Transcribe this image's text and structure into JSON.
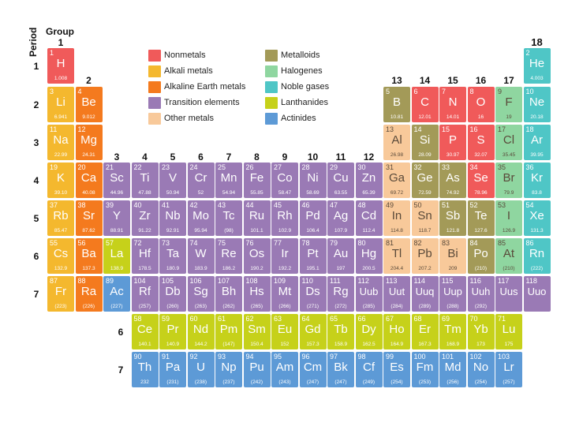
{
  "labels": {
    "period": "Period",
    "group": "Group"
  },
  "colors": {
    "nonmetal": "#f05a5a",
    "alkali": "#f4b82e",
    "alkaline": "#f47a1e",
    "transition": "#9a7ab5",
    "other": "#f8c99a",
    "metalloid": "#a39a58",
    "halogen": "#8fd6a0",
    "noble": "#4fc6c6",
    "lanthanide": "#c6d11a",
    "actinide": "#5d9ad6"
  },
  "legend": [
    {
      "label": "Nonmetals",
      "cat": "nonmetal"
    },
    {
      "label": "Alkali metals",
      "cat": "alkali"
    },
    {
      "label": "Alkaline Earth metals",
      "cat": "alkaline"
    },
    {
      "label": "Transition elements",
      "cat": "transition"
    },
    {
      "label": "Other metals",
      "cat": "other"
    },
    {
      "label": "Metalloids",
      "cat": "metalloid"
    },
    {
      "label": "Halogenes",
      "cat": "halogen"
    },
    {
      "label": "Noble gases",
      "cat": "noble"
    },
    {
      "label": "Lanthanides",
      "cat": "lanthanide"
    },
    {
      "label": "Actinides",
      "cat": "actinide"
    }
  ],
  "group_labels": [
    "1",
    "2",
    "3",
    "4",
    "5",
    "6",
    "7",
    "8",
    "9",
    "10",
    "11",
    "12",
    "13",
    "14",
    "15",
    "16",
    "17",
    "18"
  ],
  "period_labels": [
    "1",
    "2",
    "3",
    "4",
    "5",
    "6",
    "7"
  ],
  "series_labels": [
    "6",
    "7"
  ],
  "elements": [
    {
      "n": "1",
      "s": "H",
      "m": "1.008",
      "p": 1,
      "g": 1,
      "c": "nonmetal"
    },
    {
      "n": "2",
      "s": "He",
      "m": "4.003",
      "p": 1,
      "g": 18,
      "c": "noble"
    },
    {
      "n": "3",
      "s": "Li",
      "m": "6.941",
      "p": 2,
      "g": 1,
      "c": "alkali"
    },
    {
      "n": "4",
      "s": "Be",
      "m": "9.012",
      "p": 2,
      "g": 2,
      "c": "alkaline"
    },
    {
      "n": "5",
      "s": "B",
      "m": "10.81",
      "p": 2,
      "g": 13,
      "c": "metalloid"
    },
    {
      "n": "6",
      "s": "C",
      "m": "12.01",
      "p": 2,
      "g": 14,
      "c": "nonmetal"
    },
    {
      "n": "7",
      "s": "N",
      "m": "14.01",
      "p": 2,
      "g": 15,
      "c": "nonmetal"
    },
    {
      "n": "8",
      "s": "O",
      "m": "16",
      "p": 2,
      "g": 16,
      "c": "nonmetal"
    },
    {
      "n": "9",
      "s": "F",
      "m": "19",
      "p": 2,
      "g": 17,
      "c": "halogen"
    },
    {
      "n": "10",
      "s": "Ne",
      "m": "20.18",
      "p": 2,
      "g": 18,
      "c": "noble"
    },
    {
      "n": "11",
      "s": "Na",
      "m": "22.99",
      "p": 3,
      "g": 1,
      "c": "alkali"
    },
    {
      "n": "12",
      "s": "Mg",
      "m": "24.31",
      "p": 3,
      "g": 2,
      "c": "alkaline"
    },
    {
      "n": "13",
      "s": "Al",
      "m": "26.98",
      "p": 3,
      "g": 13,
      "c": "other"
    },
    {
      "n": "14",
      "s": "Si",
      "m": "28.09",
      "p": 3,
      "g": 14,
      "c": "metalloid"
    },
    {
      "n": "15",
      "s": "P",
      "m": "30.97",
      "p": 3,
      "g": 15,
      "c": "nonmetal"
    },
    {
      "n": "16",
      "s": "S",
      "m": "32.07",
      "p": 3,
      "g": 16,
      "c": "nonmetal"
    },
    {
      "n": "17",
      "s": "Cl",
      "m": "35.45",
      "p": 3,
      "g": 17,
      "c": "halogen"
    },
    {
      "n": "18",
      "s": "Ar",
      "m": "39.95",
      "p": 3,
      "g": 18,
      "c": "noble"
    },
    {
      "n": "19",
      "s": "K",
      "m": "39.10",
      "p": 4,
      "g": 1,
      "c": "alkali"
    },
    {
      "n": "20",
      "s": "Ca",
      "m": "40.08",
      "p": 4,
      "g": 2,
      "c": "alkaline"
    },
    {
      "n": "21",
      "s": "Sc",
      "m": "44.96",
      "p": 4,
      "g": 3,
      "c": "transition"
    },
    {
      "n": "22",
      "s": "Ti",
      "m": "47.88",
      "p": 4,
      "g": 4,
      "c": "transition"
    },
    {
      "n": "23",
      "s": "V",
      "m": "50.94",
      "p": 4,
      "g": 5,
      "c": "transition"
    },
    {
      "n": "24",
      "s": "Cr",
      "m": "52",
      "p": 4,
      "g": 6,
      "c": "transition"
    },
    {
      "n": "25",
      "s": "Mn",
      "m": "54.94",
      "p": 4,
      "g": 7,
      "c": "transition"
    },
    {
      "n": "26",
      "s": "Fe",
      "m": "55.85",
      "p": 4,
      "g": 8,
      "c": "transition"
    },
    {
      "n": "27",
      "s": "Co",
      "m": "58.47",
      "p": 4,
      "g": 9,
      "c": "transition"
    },
    {
      "n": "28",
      "s": "Ni",
      "m": "58.69",
      "p": 4,
      "g": 10,
      "c": "transition"
    },
    {
      "n": "29",
      "s": "Cu",
      "m": "63.55",
      "p": 4,
      "g": 11,
      "c": "transition"
    },
    {
      "n": "30",
      "s": "Zn",
      "m": "65.39",
      "p": 4,
      "g": 12,
      "c": "transition"
    },
    {
      "n": "31",
      "s": "Ga",
      "m": "69.72",
      "p": 4,
      "g": 13,
      "c": "other"
    },
    {
      "n": "32",
      "s": "Ge",
      "m": "72.59",
      "p": 4,
      "g": 14,
      "c": "metalloid"
    },
    {
      "n": "33",
      "s": "As",
      "m": "74.92",
      "p": 4,
      "g": 15,
      "c": "metalloid"
    },
    {
      "n": "34",
      "s": "Se",
      "m": "78.96",
      "p": 4,
      "g": 16,
      "c": "nonmetal"
    },
    {
      "n": "35",
      "s": "Br",
      "m": "79.9",
      "p": 4,
      "g": 17,
      "c": "halogen"
    },
    {
      "n": "36",
      "s": "Kr",
      "m": "83.8",
      "p": 4,
      "g": 18,
      "c": "noble"
    },
    {
      "n": "37",
      "s": "Rb",
      "m": "85.47",
      "p": 5,
      "g": 1,
      "c": "alkali"
    },
    {
      "n": "38",
      "s": "Sr",
      "m": "87.62",
      "p": 5,
      "g": 2,
      "c": "alkaline"
    },
    {
      "n": "39",
      "s": "Y",
      "m": "88.91",
      "p": 5,
      "g": 3,
      "c": "transition"
    },
    {
      "n": "40",
      "s": "Zr",
      "m": "91.22",
      "p": 5,
      "g": 4,
      "c": "transition"
    },
    {
      "n": "41",
      "s": "Nb",
      "m": "92.91",
      "p": 5,
      "g": 5,
      "c": "transition"
    },
    {
      "n": "42",
      "s": "Mo",
      "m": "95.94",
      "p": 5,
      "g": 6,
      "c": "transition"
    },
    {
      "n": "43",
      "s": "Tc",
      "m": "(98)",
      "p": 5,
      "g": 7,
      "c": "transition"
    },
    {
      "n": "44",
      "s": "Ru",
      "m": "101.1",
      "p": 5,
      "g": 8,
      "c": "transition"
    },
    {
      "n": "45",
      "s": "Rh",
      "m": "102.9",
      "p": 5,
      "g": 9,
      "c": "transition"
    },
    {
      "n": "46",
      "s": "Pd",
      "m": "106.4",
      "p": 5,
      "g": 10,
      "c": "transition"
    },
    {
      "n": "47",
      "s": "Ag",
      "m": "107.9",
      "p": 5,
      "g": 11,
      "c": "transition"
    },
    {
      "n": "48",
      "s": "Cd",
      "m": "112.4",
      "p": 5,
      "g": 12,
      "c": "transition"
    },
    {
      "n": "49",
      "s": "In",
      "m": "114.8",
      "p": 5,
      "g": 13,
      "c": "other"
    },
    {
      "n": "50",
      "s": "Sn",
      "m": "118.7",
      "p": 5,
      "g": 14,
      "c": "other"
    },
    {
      "n": "51",
      "s": "Sb",
      "m": "121.8",
      "p": 5,
      "g": 15,
      "c": "metalloid"
    },
    {
      "n": "52",
      "s": "Te",
      "m": "127.6",
      "p": 5,
      "g": 16,
      "c": "metalloid"
    },
    {
      "n": "53",
      "s": "I",
      "m": "126.9",
      "p": 5,
      "g": 17,
      "c": "halogen"
    },
    {
      "n": "54",
      "s": "Xe",
      "m": "131.3",
      "p": 5,
      "g": 18,
      "c": "noble"
    },
    {
      "n": "55",
      "s": "Cs",
      "m": "132.9",
      "p": 6,
      "g": 1,
      "c": "alkali"
    },
    {
      "n": "56",
      "s": "Ba",
      "m": "137.3",
      "p": 6,
      "g": 2,
      "c": "alkaline"
    },
    {
      "n": "57",
      "s": "La",
      "m": "138.9",
      "p": 6,
      "g": 3,
      "c": "lanthanide"
    },
    {
      "n": "72",
      "s": "Hf",
      "m": "178.5",
      "p": 6,
      "g": 4,
      "c": "transition"
    },
    {
      "n": "73",
      "s": "Ta",
      "m": "180.9",
      "p": 6,
      "g": 5,
      "c": "transition"
    },
    {
      "n": "74",
      "s": "W",
      "m": "183.9",
      "p": 6,
      "g": 6,
      "c": "transition"
    },
    {
      "n": "75",
      "s": "Re",
      "m": "186.2",
      "p": 6,
      "g": 7,
      "c": "transition"
    },
    {
      "n": "76",
      "s": "Os",
      "m": "190.2",
      "p": 6,
      "g": 8,
      "c": "transition"
    },
    {
      "n": "77",
      "s": "Ir",
      "m": "192.2",
      "p": 6,
      "g": 9,
      "c": "transition"
    },
    {
      "n": "78",
      "s": "Pt",
      "m": "195.1",
      "p": 6,
      "g": 10,
      "c": "transition"
    },
    {
      "n": "79",
      "s": "Au",
      "m": "197",
      "p": 6,
      "g": 11,
      "c": "transition"
    },
    {
      "n": "80",
      "s": "Hg",
      "m": "200.5",
      "p": 6,
      "g": 12,
      "c": "transition"
    },
    {
      "n": "81",
      "s": "Tl",
      "m": "204.4",
      "p": 6,
      "g": 13,
      "c": "other"
    },
    {
      "n": "82",
      "s": "Pb",
      "m": "207.2",
      "p": 6,
      "g": 14,
      "c": "other"
    },
    {
      "n": "83",
      "s": "Bi",
      "m": "209",
      "p": 6,
      "g": 15,
      "c": "other"
    },
    {
      "n": "84",
      "s": "Po",
      "m": "(210)",
      "p": 6,
      "g": 16,
      "c": "metalloid"
    },
    {
      "n": "85",
      "s": "At",
      "m": "(210)",
      "p": 6,
      "g": 17,
      "c": "halogen"
    },
    {
      "n": "86",
      "s": "Rn",
      "m": "(222)",
      "p": 6,
      "g": 18,
      "c": "noble"
    },
    {
      "n": "87",
      "s": "Fr",
      "m": "(223)",
      "p": 7,
      "g": 1,
      "c": "alkali"
    },
    {
      "n": "88",
      "s": "Ra",
      "m": "(226)",
      "p": 7,
      "g": 2,
      "c": "alkaline"
    },
    {
      "n": "89",
      "s": "Ac",
      "m": "(227)",
      "p": 7,
      "g": 3,
      "c": "actinide"
    },
    {
      "n": "104",
      "s": "Rf",
      "m": "(257)",
      "p": 7,
      "g": 4,
      "c": "transition"
    },
    {
      "n": "105",
      "s": "Db",
      "m": "(260)",
      "p": 7,
      "g": 5,
      "c": "transition"
    },
    {
      "n": "106",
      "s": "Sg",
      "m": "(263)",
      "p": 7,
      "g": 6,
      "c": "transition"
    },
    {
      "n": "107",
      "s": "Bh",
      "m": "(262)",
      "p": 7,
      "g": 7,
      "c": "transition"
    },
    {
      "n": "108",
      "s": "Hs",
      "m": "(265)",
      "p": 7,
      "g": 8,
      "c": "transition"
    },
    {
      "n": "109",
      "s": "Mt",
      "m": "(266)",
      "p": 7,
      "g": 9,
      "c": "transition"
    },
    {
      "n": "110",
      "s": "Ds",
      "m": "(271)",
      "p": 7,
      "g": 10,
      "c": "transition"
    },
    {
      "n": "111",
      "s": "Rg",
      "m": "(272)",
      "p": 7,
      "g": 11,
      "c": "transition"
    },
    {
      "n": "112",
      "s": "Uub",
      "m": "(285)",
      "p": 7,
      "g": 12,
      "c": "transition"
    },
    {
      "n": "113",
      "s": "Uut",
      "m": "(284)",
      "p": 7,
      "g": 13,
      "c": "transition"
    },
    {
      "n": "114",
      "s": "Uuq",
      "m": "(289)",
      "p": 7,
      "g": 14,
      "c": "transition"
    },
    {
      "n": "115",
      "s": "Uup",
      "m": "(288)",
      "p": 7,
      "g": 15,
      "c": "transition"
    },
    {
      "n": "116",
      "s": "Uuh",
      "m": "(292)",
      "p": 7,
      "g": 16,
      "c": "transition"
    },
    {
      "n": "117",
      "s": "Uus",
      "m": "",
      "p": 7,
      "g": 17,
      "c": "transition"
    },
    {
      "n": "118",
      "s": "Uuo",
      "m": "",
      "p": 7,
      "g": 18,
      "c": "transition"
    },
    {
      "n": "58",
      "s": "Ce",
      "m": "140.1",
      "p": 8,
      "g": 4,
      "c": "lanthanide"
    },
    {
      "n": "59",
      "s": "Pr",
      "m": "140.9",
      "p": 8,
      "g": 5,
      "c": "lanthanide"
    },
    {
      "n": "60",
      "s": "Nd",
      "m": "144.2",
      "p": 8,
      "g": 6,
      "c": "lanthanide"
    },
    {
      "n": "61",
      "s": "Pm",
      "m": "(147)",
      "p": 8,
      "g": 7,
      "c": "lanthanide"
    },
    {
      "n": "62",
      "s": "Sm",
      "m": "150.4",
      "p": 8,
      "g": 8,
      "c": "lanthanide"
    },
    {
      "n": "63",
      "s": "Eu",
      "m": "152",
      "p": 8,
      "g": 9,
      "c": "lanthanide"
    },
    {
      "n": "64",
      "s": "Gd",
      "m": "157.3",
      "p": 8,
      "g": 10,
      "c": "lanthanide"
    },
    {
      "n": "65",
      "s": "Tb",
      "m": "158.9",
      "p": 8,
      "g": 11,
      "c": "lanthanide"
    },
    {
      "n": "66",
      "s": "Dy",
      "m": "162.5",
      "p": 8,
      "g": 12,
      "c": "lanthanide"
    },
    {
      "n": "67",
      "s": "Ho",
      "m": "164.9",
      "p": 8,
      "g": 13,
      "c": "lanthanide"
    },
    {
      "n": "68",
      "s": "Er",
      "m": "167.3",
      "p": 8,
      "g": 14,
      "c": "lanthanide"
    },
    {
      "n": "69",
      "s": "Tm",
      "m": "168.9",
      "p": 8,
      "g": 15,
      "c": "lanthanide"
    },
    {
      "n": "70",
      "s": "Yb",
      "m": "173",
      "p": 8,
      "g": 16,
      "c": "lanthanide"
    },
    {
      "n": "71",
      "s": "Lu",
      "m": "175",
      "p": 8,
      "g": 17,
      "c": "lanthanide"
    },
    {
      "n": "90",
      "s": "Th",
      "m": "232",
      "p": 9,
      "g": 4,
      "c": "actinide"
    },
    {
      "n": "91",
      "s": "Pa",
      "m": "(231)",
      "p": 9,
      "g": 5,
      "c": "actinide"
    },
    {
      "n": "92",
      "s": "U",
      "m": "(238)",
      "p": 9,
      "g": 6,
      "c": "actinide"
    },
    {
      "n": "93",
      "s": "Np",
      "m": "(237)",
      "p": 9,
      "g": 7,
      "c": "actinide"
    },
    {
      "n": "94",
      "s": "Pu",
      "m": "(242)",
      "p": 9,
      "g": 8,
      "c": "actinide"
    },
    {
      "n": "95",
      "s": "Am",
      "m": "(243)",
      "p": 9,
      "g": 9,
      "c": "actinide"
    },
    {
      "n": "96",
      "s": "Cm",
      "m": "(247)",
      "p": 9,
      "g": 10,
      "c": "actinide"
    },
    {
      "n": "97",
      "s": "Bk",
      "m": "(247)",
      "p": 9,
      "g": 11,
      "c": "actinide"
    },
    {
      "n": "98",
      "s": "Cf",
      "m": "(249)",
      "p": 9,
      "g": 12,
      "c": "actinide"
    },
    {
      "n": "99",
      "s": "Es",
      "m": "(254)",
      "p": 9,
      "g": 13,
      "c": "actinide"
    },
    {
      "n": "100",
      "s": "Fm",
      "m": "(253)",
      "p": 9,
      "g": 14,
      "c": "actinide"
    },
    {
      "n": "101",
      "s": "Md",
      "m": "(256)",
      "p": 9,
      "g": 15,
      "c": "actinide"
    },
    {
      "n": "102",
      "s": "No",
      "m": "(254)",
      "p": 9,
      "g": 16,
      "c": "actinide"
    },
    {
      "n": "103",
      "s": "Lr",
      "m": "(257)",
      "p": 9,
      "g": 17,
      "c": "actinide"
    }
  ]
}
